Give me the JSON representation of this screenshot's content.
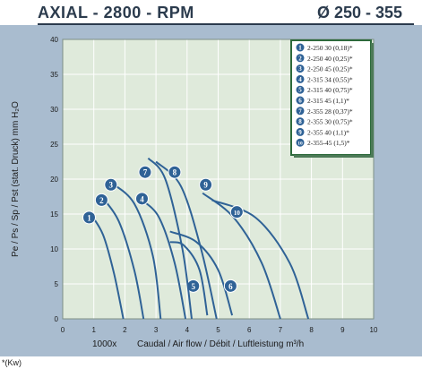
{
  "header": {
    "title_left": "AXIAL - 2800 - RPM",
    "title_right": "Ø 250 - 355"
  },
  "footnote": "*(Kw)",
  "colors": {
    "panel": "#a9bccf",
    "plot_bg": "#dfeadb",
    "curve": "#2f6296",
    "grid": "#ffffff",
    "legend_border": "#2d6a3b",
    "legend_bg": "#ffffff"
  },
  "chart_data": {
    "type": "line",
    "xlabel_prefix": "1000x",
    "xlabel": "Caudal / Air flow / Débit / Luftleistung m³/h",
    "ylabel": "Pe / Ps / Sp / Pst (stat. Druck) mm H₂O",
    "xlim": [
      0,
      10
    ],
    "ylim": [
      0,
      40
    ],
    "x_ticks": [
      0,
      1,
      2,
      3,
      4,
      5,
      6,
      7,
      8,
      9,
      10
    ],
    "y_ticks": [
      0,
      5,
      10,
      15,
      20,
      25,
      30,
      35,
      40
    ],
    "grid": true,
    "legend_position": "top-right",
    "legend": [
      {
        "num": "1",
        "label": "2-250 30 (0,18)*"
      },
      {
        "num": "2",
        "label": "2-250 40 (0,25)*"
      },
      {
        "num": "3",
        "label": "2-250 45 (0,25)*"
      },
      {
        "num": "4",
        "label": "2-315 34 (0,55)*"
      },
      {
        "num": "5",
        "label": "2-315 40 (0,75)*"
      },
      {
        "num": "6",
        "label": "2-315 45 (1,1)*"
      },
      {
        "num": "7",
        "label": "2-355 28 (0,37)*"
      },
      {
        "num": "8",
        "label": "2-355 30 (0,75)*"
      },
      {
        "num": "9",
        "label": "2-355 40 (1,1)*"
      },
      {
        "num": "10",
        "label": "2-355-45 (1,5)*"
      }
    ],
    "series": [
      {
        "name": "1",
        "label_at": [
          0.85,
          14.5
        ],
        "points": [
          [
            0.9,
            15.0
          ],
          [
            1.3,
            12.0
          ],
          [
            1.65,
            6.5
          ],
          [
            1.95,
            0.0
          ]
        ]
      },
      {
        "name": "2",
        "label_at": [
          1.25,
          17.0
        ],
        "points": [
          [
            1.25,
            17.5
          ],
          [
            1.8,
            14.0
          ],
          [
            2.3,
            7.0
          ],
          [
            2.6,
            0.0
          ]
        ]
      },
      {
        "name": "3",
        "label_at": [
          1.55,
          19.2
        ],
        "points": [
          [
            1.55,
            19.5
          ],
          [
            2.3,
            16.5
          ],
          [
            2.9,
            9.0
          ],
          [
            3.15,
            0.0
          ]
        ]
      },
      {
        "name": "4",
        "label_at": [
          2.55,
          17.2
        ],
        "points": [
          [
            2.55,
            17.0
          ],
          [
            3.1,
            14.5
          ],
          [
            3.6,
            8.0
          ],
          [
            3.95,
            0.0
          ]
        ]
      },
      {
        "name": "5",
        "label_at": [
          4.2,
          4.7
        ],
        "points": [
          [
            3.45,
            11.0
          ],
          [
            3.9,
            10.5
          ],
          [
            4.4,
            7.0
          ],
          [
            4.65,
            0.5
          ]
        ]
      },
      {
        "name": "6",
        "label_at": [
          5.4,
          4.7
        ],
        "points": [
          [
            3.45,
            12.5
          ],
          [
            4.3,
            11.0
          ],
          [
            5.0,
            7.0
          ],
          [
            5.45,
            0.5
          ]
        ]
      },
      {
        "name": "7",
        "label_at": [
          2.65,
          21.0
        ],
        "points": [
          [
            2.75,
            23.0
          ],
          [
            3.3,
            20.0
          ],
          [
            3.85,
            10.0
          ],
          [
            4.15,
            0.0
          ]
        ]
      },
      {
        "name": "8",
        "label_at": [
          3.6,
          21.0
        ],
        "points": [
          [
            3.0,
            22.5
          ],
          [
            3.8,
            19.0
          ],
          [
            4.45,
            10.0
          ],
          [
            4.95,
            0.0
          ]
        ]
      },
      {
        "name": "9",
        "label_at": [
          4.6,
          19.2
        ],
        "points": [
          [
            4.5,
            18.0
          ],
          [
            5.5,
            14.5
          ],
          [
            6.4,
            8.0
          ],
          [
            7.0,
            0.0
          ]
        ]
      },
      {
        "name": "10",
        "label_at": [
          5.6,
          15.3
        ],
        "points": [
          [
            4.8,
            17.0
          ],
          [
            6.2,
            14.5
          ],
          [
            7.3,
            8.0
          ],
          [
            7.9,
            0.0
          ]
        ]
      }
    ]
  }
}
